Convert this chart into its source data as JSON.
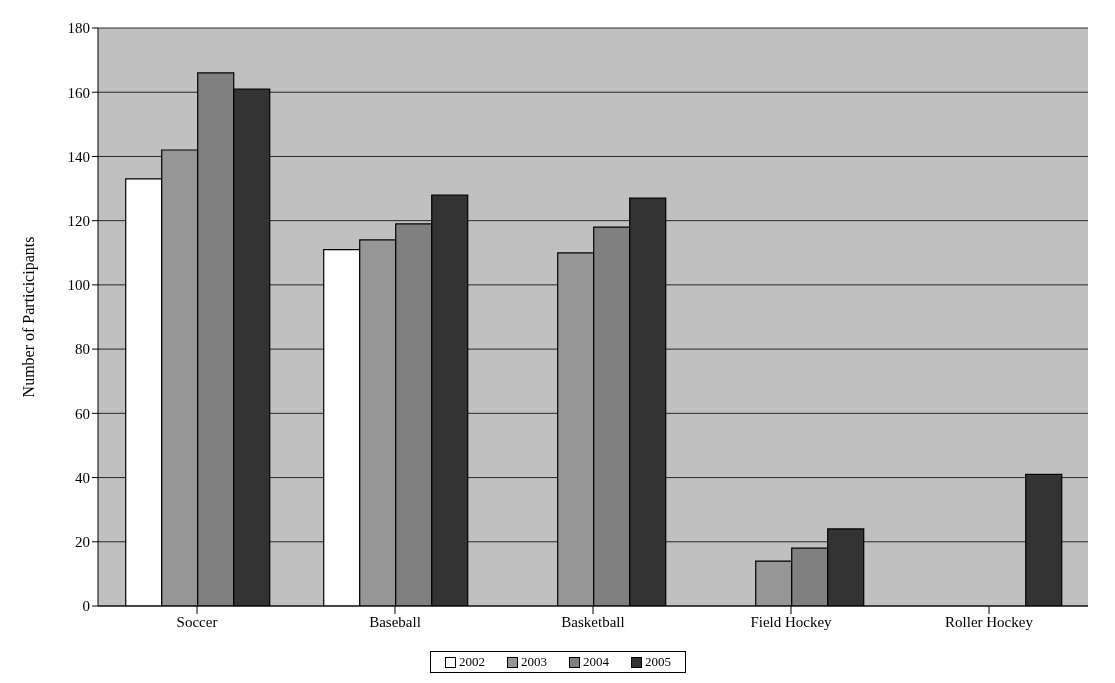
{
  "chart_data": {
    "type": "bar",
    "ylabel": "Number of Particicipants",
    "categories": [
      "Soccer",
      "Baseball",
      "Basketball",
      "Field Hockey",
      "Roller Hockey"
    ],
    "series": [
      {
        "name": "2002",
        "color": "#ffffff",
        "values": [
          133,
          111,
          null,
          null,
          null
        ]
      },
      {
        "name": "2003",
        "color": "#969696",
        "values": [
          142,
          114,
          110,
          14,
          null
        ]
      },
      {
        "name": "2004",
        "color": "#808080",
        "values": [
          166,
          119,
          118,
          18,
          null
        ]
      },
      {
        "name": "2005",
        "color": "#333333",
        "values": [
          161,
          128,
          127,
          24,
          41
        ]
      }
    ],
    "ylim": [
      0,
      180
    ],
    "yticks": [
      0,
      20,
      40,
      60,
      80,
      100,
      120,
      140,
      160,
      180
    ],
    "grid": "y",
    "legend": "bottom"
  }
}
